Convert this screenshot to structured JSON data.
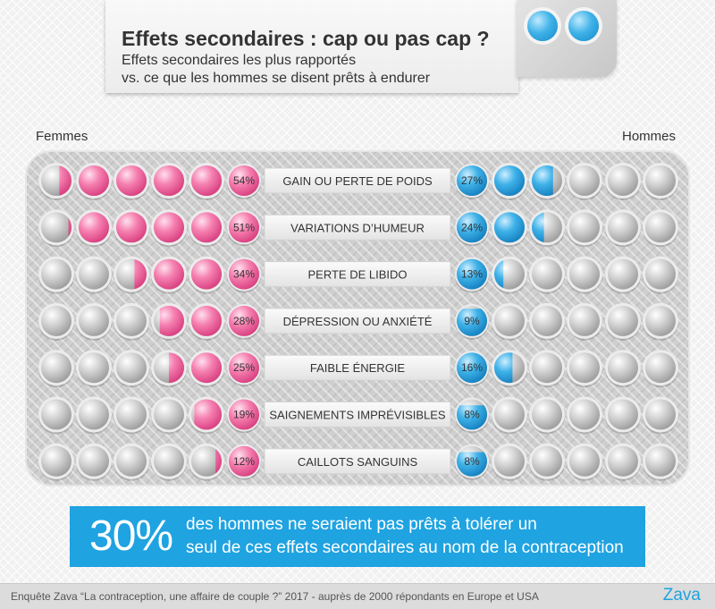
{
  "header": {
    "title": "Effets secondaires : cap ou pas cap ?",
    "subtitle_line1": "Effets secondaires les plus rapportés",
    "subtitle_line2": "vs. ce que les hommes se disent prêts à endurer"
  },
  "labels": {
    "left": "Femmes",
    "right": "Hommes"
  },
  "chart_data": {
    "type": "bar",
    "title": "Effets secondaires : cap ou pas cap ?",
    "representation": "pictogram: 6 pills per side, each pill = 10%",
    "categories": [
      "GAIN OU PERTE DE POIDS",
      "VARIATIONS D’HUMEUR",
      "PERTE DE LIBIDO",
      "DÉPRESSION OU ANXIÉTÉ",
      "FAIBLE ÉNERGIE",
      "SAIGNEMENTS IMPRÉVISIBLES",
      "CAILLOTS SANGUINS"
    ],
    "series": [
      {
        "name": "Femmes",
        "color": "#f25c9a",
        "values": [
          54,
          51,
          34,
          28,
          25,
          19,
          12
        ],
        "labels": [
          "54%",
          "51%",
          "34%",
          "28%",
          "25%",
          "19%",
          "12%"
        ]
      },
      {
        "name": "Hommes",
        "color": "#2aa3df",
        "values": [
          27,
          24,
          13,
          9,
          16,
          8,
          8
        ],
        "labels": [
          "27%",
          "24%",
          "13%",
          "9%",
          "16%",
          "8%",
          "8%"
        ]
      }
    ],
    "ylim": [
      0,
      60
    ]
  },
  "callout": {
    "percent": "30%",
    "line1": "des hommes ne seraient pas prêts à tolérer un",
    "line2": "seul de ces effets secondaires au nom de la contraception",
    "color": "#1fa3e1"
  },
  "footer": {
    "source": "Enquête Zava “La contraception, une affaire de couple ?” 2017 - auprès de 2000 répondants en Europe et USA",
    "brand": "Zava"
  }
}
